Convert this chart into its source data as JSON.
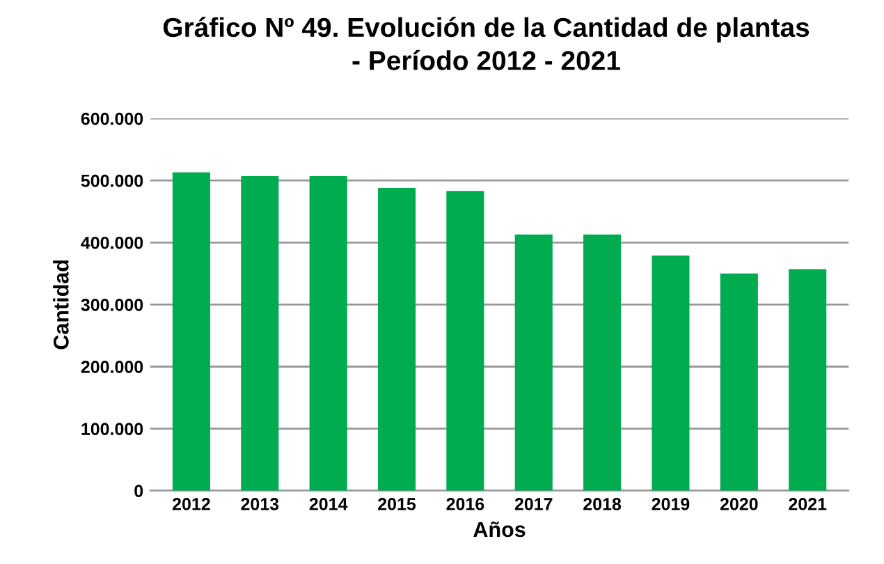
{
  "chart_data": {
    "type": "bar",
    "title": "Gráfico Nº 49. Evolución de la Cantidad de plantas\n- Período 2012 - 2021",
    "xlabel": "Años",
    "ylabel": "Cantidad",
    "categories": [
      "2012",
      "2013",
      "2014",
      "2015",
      "2016",
      "2017",
      "2018",
      "2019",
      "2020",
      "2021"
    ],
    "values": [
      513000,
      507000,
      507000,
      488000,
      483000,
      413000,
      413000,
      379000,
      350000,
      357000
    ],
    "color": "#00ac4f",
    "ylim": [
      0,
      600000
    ],
    "yticks": [
      {
        "value": 0,
        "label": "0"
      },
      {
        "value": 100000,
        "label": "100.000"
      },
      {
        "value": 200000,
        "label": "200.000"
      },
      {
        "value": 300000,
        "label": "300.000"
      },
      {
        "value": 400000,
        "label": "400.000"
      },
      {
        "value": 500000,
        "label": "500.000"
      },
      {
        "value": 600000,
        "label": "600.000"
      }
    ],
    "grid": "y",
    "legend": false
  }
}
